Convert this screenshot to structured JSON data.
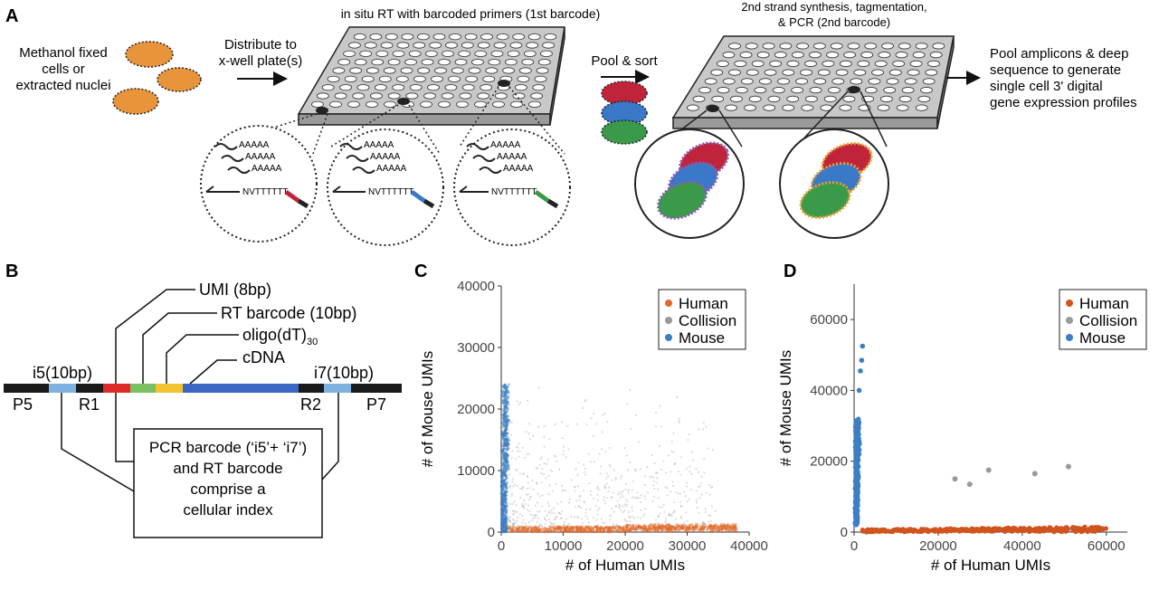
{
  "panel_a": {
    "letter": "A",
    "step1": [
      "Methanol fixed",
      "cells or",
      "extracted nuclei"
    ],
    "step2": [
      "Distribute to",
      "x-well plate(s)"
    ],
    "plate1_title": "in situ  RT with barcoded primers (1st barcode)",
    "step3": "Pool & sort",
    "plate2_title": [
      "2nd strand synthesis, tagmentation,",
      "& PCR (2nd barcode)"
    ],
    "step4": [
      "Pool amplicons & deep",
      "sequence to generate",
      "single cell 3' digital",
      "gene expression profiles"
    ],
    "polya": "AAAAA",
    "primer": "NVTTTTTT",
    "colors": {
      "cell": "#e8943a",
      "red": "#c0243a",
      "blue": "#3a78c8",
      "green": "#3a9a4a",
      "purple": "#8a5ab8",
      "orange": "#e8a030"
    }
  },
  "panel_b": {
    "letter": "B",
    "labels": {
      "umi": "UMI (8bp)",
      "rt_barcode": "RT barcode (10bp)",
      "oligo_dt": "oligo(dT)",
      "oligo_sub": "30",
      "cdna": "cDNA",
      "i5": "i5(10bp)",
      "i7": "i7(10bp)",
      "p5": "P5",
      "r1": "R1",
      "r2": "R2",
      "p7": "P7"
    },
    "box_text": [
      "PCR barcode (‘i5’+ ‘i7’)",
      "and RT barcode",
      "comprise a",
      "cellular index"
    ],
    "colors": {
      "black": "#1a1a1a",
      "lightblue": "#7fb1e0",
      "red": "#e02a2a",
      "green": "#7ac063",
      "yellow": "#f4c430",
      "blue": "#3b66c4"
    }
  },
  "panel_c": {
    "letter": "C",
    "chart_data": {
      "type": "scatter",
      "xlabel": "# of Human UMIs",
      "ylabel": "# of Mouse UMIs",
      "xlim": [
        0,
        40000
      ],
      "ylim": [
        0,
        40000
      ],
      "xticks": [
        "0",
        "10000",
        "20000",
        "30000",
        "40000"
      ],
      "yticks": [
        "0",
        "10000",
        "20000",
        "30000",
        "40000"
      ],
      "legend_position": "top-right",
      "series": [
        {
          "name": "Human",
          "color": "#e06a2a",
          "pattern": "horizontal band near y≈0 spanning x 500–38000"
        },
        {
          "name": "Collision",
          "color": "#9a9a9a",
          "pattern": "diffuse cloud x 1000–35000, y 500–18000"
        },
        {
          "name": "Mouse",
          "color": "#3b7fc4",
          "pattern": "vertical band near x≈0 spanning y 0–24000"
        }
      ]
    }
  },
  "panel_d": {
    "letter": "D",
    "chart_data": {
      "type": "scatter",
      "xlabel": "# of Human UMIs",
      "ylabel": "# of Mouse UMIs",
      "xlim": [
        0,
        65000
      ],
      "ylim": [
        0,
        70000
      ],
      "xticks": [
        "0",
        "20000",
        "40000",
        "60000"
      ],
      "yticks": [
        "0",
        "20000",
        "40000",
        "60000"
      ],
      "legend_position": "top-right",
      "series": [
        {
          "name": "Human",
          "color": "#d0541e",
          "pattern": "horizontal band at y≈0–1500 spanning x 2000–60000"
        },
        {
          "name": "Collision",
          "color": "#9a9a9a",
          "points": [
            [
              24000,
              15000
            ],
            [
              27500,
              13500
            ],
            [
              32000,
              17500
            ],
            [
              43000,
              16500
            ],
            [
              51000,
              18500
            ]
          ]
        },
        {
          "name": "Mouse",
          "color": "#3b7fc4",
          "pattern": "vertical band near x≈500 spanning y 2000–52000",
          "outliers": [
            [
              1500,
              45500
            ],
            [
              1800,
              48500
            ],
            [
              2000,
              52500
            ],
            [
              1200,
              40000
            ]
          ]
        }
      ]
    }
  }
}
